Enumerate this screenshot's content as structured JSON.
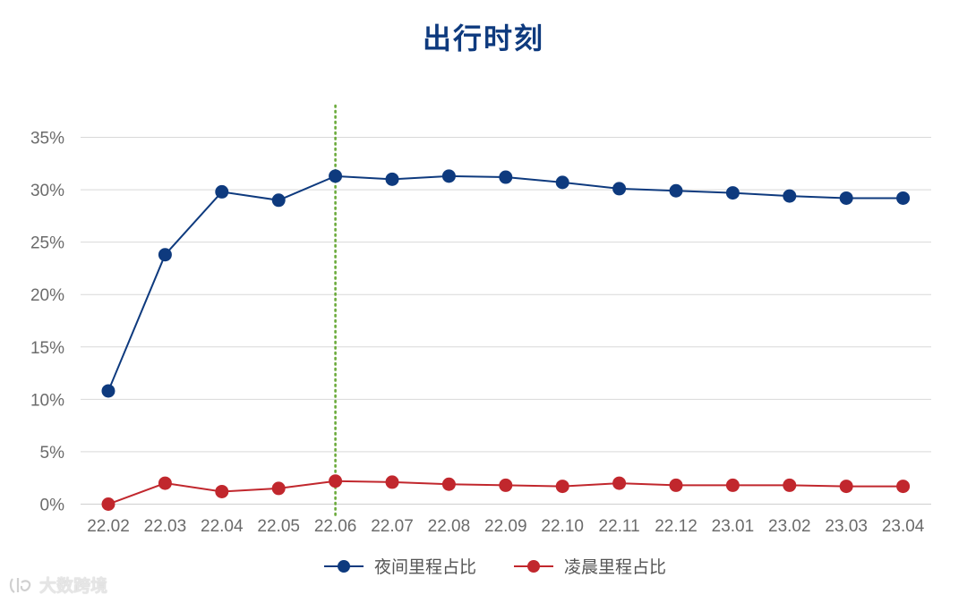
{
  "chart_data": {
    "type": "line",
    "title": "出行时刻",
    "categories": [
      "22.02",
      "22.03",
      "22.04",
      "22.05",
      "22.06",
      "22.07",
      "22.08",
      "22.09",
      "22.10",
      "22.11",
      "22.12",
      "23.01",
      "23.02",
      "23.03",
      "23.04"
    ],
    "series": [
      {
        "name": "夜间里程占比",
        "color": "#0e3a7e",
        "values": [
          10.8,
          23.8,
          29.8,
          29.0,
          31.3,
          31.0,
          31.3,
          31.2,
          30.7,
          30.1,
          29.9,
          29.7,
          29.4,
          29.2,
          29.2
        ]
      },
      {
        "name": "凌晨里程占比",
        "color": "#c1272d",
        "values": [
          0.0,
          2.0,
          1.2,
          1.5,
          2.2,
          2.1,
          1.9,
          1.8,
          1.7,
          2.0,
          1.8,
          1.8,
          1.8,
          1.7,
          1.7
        ]
      }
    ],
    "y_ticks": [
      "0%",
      "5%",
      "10%",
      "15%",
      "20%",
      "25%",
      "30%",
      "35%"
    ],
    "ylim": [
      0,
      35
    ],
    "y_unit": "%",
    "grid": true,
    "legend_position": "bottom",
    "reference_line": {
      "category": "22.06",
      "style": "dotted",
      "color": "#6aaa3a"
    }
  },
  "watermark": {
    "text": "大数跨境"
  }
}
